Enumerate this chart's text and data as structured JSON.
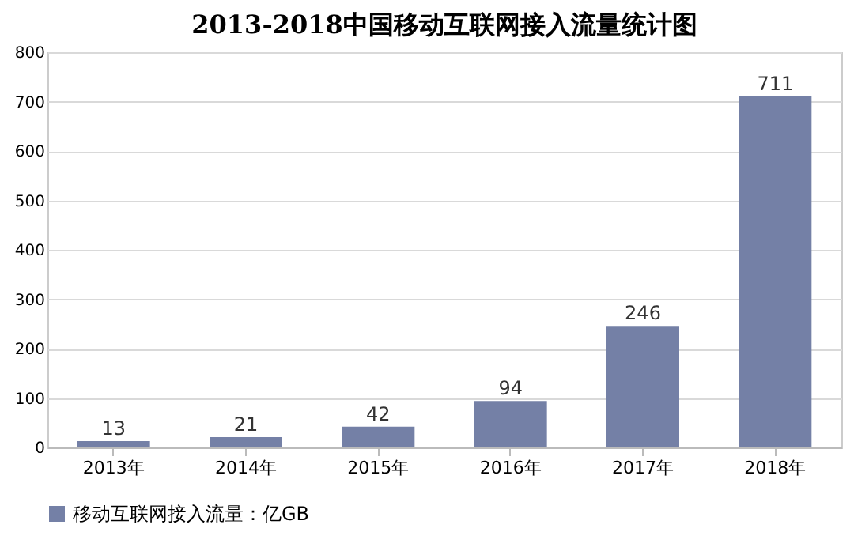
{
  "chart_data": {
    "type": "bar",
    "title": "2013-2018中国移动互联网接入流量统计图",
    "categories": [
      "2013年",
      "2014年",
      "2015年",
      "2016年",
      "2017年",
      "2018年"
    ],
    "series": [
      {
        "name": "移动互联网接入流量：亿GB",
        "color": "#7480a6",
        "values": [
          13,
          21,
          42,
          94,
          246,
          711
        ]
      }
    ],
    "ylim": [
      0,
      800
    ],
    "yticks": [
      0,
      100,
      200,
      300,
      400,
      500,
      600,
      700,
      800
    ],
    "grid": "y",
    "legend": "bottom",
    "data_labels": true
  }
}
